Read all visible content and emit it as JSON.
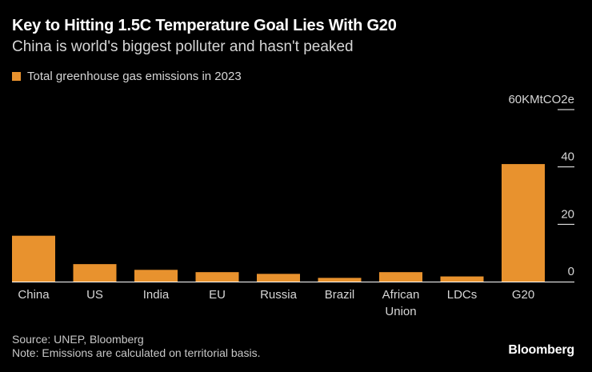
{
  "header": {
    "title": "Key to Hitting 1.5C Temperature Goal Lies With G20",
    "subtitle": "China is world's biggest polluter and hasn't peaked"
  },
  "legend": {
    "label": "Total greenhouse gas emissions in 2023"
  },
  "footer": {
    "source": "Source: UNEP, Bloomberg",
    "note": "Note: Emissions are calculated on territorial basis.",
    "brand": "Bloomberg"
  },
  "colors": {
    "bar": "#e8922e",
    "background": "#000000",
    "text": "#d6d6d6",
    "axis": "#ffffff"
  },
  "chart_data": {
    "type": "bar",
    "title": "Key to Hitting 1.5C Temperature Goal Lies With G20",
    "subtitle": "China is world's biggest polluter and hasn't peaked",
    "categories": [
      "China",
      "US",
      "India",
      "EU",
      "Russia",
      "Brazil",
      "African Union",
      "LDCs",
      "G20"
    ],
    "category_lines": [
      [
        "China"
      ],
      [
        "US"
      ],
      [
        "India"
      ],
      [
        "EU"
      ],
      [
        "Russia"
      ],
      [
        "Brazil"
      ],
      [
        "African",
        "Union"
      ],
      [
        "LDCs"
      ],
      [
        "G20"
      ]
    ],
    "series": [
      {
        "name": "Total greenhouse gas emissions in 2023",
        "values": [
          16.0,
          6.1,
          4.1,
          3.3,
          2.7,
          1.3,
          3.3,
          1.8,
          41.0
        ]
      }
    ],
    "yticks": [
      0,
      20,
      40,
      60
    ],
    "ytick_labels": [
      "0",
      "20",
      "40",
      "60KMtCO2e"
    ],
    "ylim": [
      0,
      60
    ],
    "xlabel": "",
    "ylabel": "MtCO2e",
    "legend_position": "top-left",
    "grid": false
  }
}
